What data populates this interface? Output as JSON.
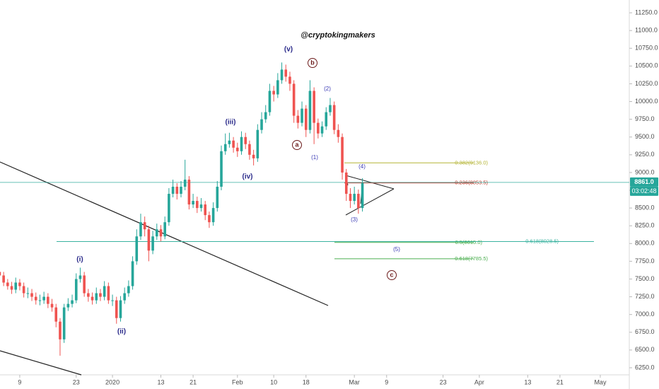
{
  "chart_data": {
    "type": "candlestick",
    "watermark": "@cryptokingmakers",
    "x": [
      3,
      4,
      5,
      6,
      7,
      8,
      9,
      10,
      11,
      12,
      13,
      14,
      15,
      16,
      17,
      18,
      19,
      20,
      21,
      22,
      23,
      24,
      25,
      26,
      27,
      28,
      29,
      30,
      31,
      32,
      33,
      34,
      35,
      36,
      37,
      38,
      39,
      40,
      41,
      42,
      43,
      44,
      45,
      46,
      47,
      48,
      49,
      50,
      51,
      52,
      53,
      54,
      55,
      56,
      57,
      58,
      59,
      60,
      61,
      62,
      63,
      64,
      65,
      66,
      67,
      68,
      69,
      70,
      71,
      72,
      73,
      74,
      75,
      76,
      77,
      78,
      79,
      80,
      81,
      82,
      83,
      84,
      85,
      86,
      87,
      88,
      89,
      90,
      91,
      92,
      93
    ],
    "open": [
      7600,
      7550,
      7450,
      7400,
      7350,
      7450,
      7400,
      7300,
      7300,
      7250,
      7200,
      7200,
      7250,
      7150,
      7100,
      6900,
      6650,
      7100,
      7150,
      7200,
      7500,
      7550,
      7300,
      7250,
      7200,
      7300,
      7250,
      7400,
      7200,
      7200,
      6950,
      7200,
      7300,
      7400,
      7750,
      8100,
      8300,
      8200,
      7900,
      8100,
      8200,
      8100,
      8300,
      8700,
      8800,
      8700,
      8800,
      8900,
      8550,
      8600,
      8500,
      8550,
      8400,
      8300,
      8500,
      8800,
      9300,
      9400,
      9450,
      9350,
      9300,
      9500,
      9400,
      9250,
      9200,
      9600,
      9750,
      9850,
      10150,
      10100,
      10300,
      10450,
      10350,
      10250,
      9800,
      9700,
      9900,
      9600,
      10150,
      9700,
      9550,
      9650,
      9850,
      9950,
      9600,
      9500,
      9000,
      8700,
      8600,
      8700,
      8500
    ],
    "high": [
      7680,
      7600,
      7500,
      7460,
      7520,
      7500,
      7450,
      7380,
      7360,
      7310,
      7280,
      7320,
      7300,
      7220,
      7150,
      6950,
      7150,
      7230,
      7280,
      7580,
      7660,
      7600,
      7360,
      7310,
      7380,
      7360,
      7470,
      7450,
      7280,
      7250,
      7260,
      7380,
      7480,
      7820,
      8200,
      8420,
      8380,
      8250,
      8180,
      8280,
      8260,
      8380,
      8780,
      8900,
      8850,
      8880,
      9180,
      8950,
      8700,
      8660,
      8640,
      8600,
      8450,
      8580,
      8880,
      9380,
      9550,
      9560,
      9500,
      9420,
      9580,
      9560,
      9450,
      9320,
      9680,
      9850,
      9950,
      10250,
      10220,
      10400,
      10550,
      10520,
      10420,
      10300,
      9880,
      10000,
      9950,
      10300,
      10200,
      9760,
      9720,
      9920,
      10050,
      10000,
      9680,
      9550,
      9050,
      8780,
      8800,
      8760,
      8920
    ],
    "low": [
      7500,
      7400,
      7350,
      7290,
      7300,
      7340,
      7240,
      7230,
      7190,
      7140,
      7130,
      7150,
      7090,
      7040,
      6820,
      6420,
      6600,
      7050,
      7100,
      7160,
      7450,
      7250,
      7180,
      7140,
      7150,
      7190,
      7200,
      7150,
      7120,
      6870,
      6900,
      7150,
      7250,
      7350,
      7700,
      8050,
      8100,
      7750,
      7850,
      8050,
      8030,
      8060,
      8250,
      8650,
      8620,
      8650,
      8750,
      8480,
      8500,
      8430,
      8450,
      8330,
      8220,
      8250,
      8450,
      8750,
      9250,
      9350,
      9280,
      9220,
      9250,
      9330,
      9180,
      9100,
      9150,
      9550,
      9700,
      9800,
      10000,
      10050,
      10250,
      10280,
      10150,
      9700,
      9620,
      9650,
      9500,
      9550,
      9400,
      9480,
      9500,
      9600,
      9800,
      9540,
      9420,
      8900,
      8600,
      8500,
      8550,
      8420,
      8450
    ],
    "close": [
      7550,
      7450,
      7400,
      7350,
      7450,
      7400,
      7300,
      7300,
      7250,
      7200,
      7200,
      7250,
      7150,
      7100,
      6900,
      6650,
      7100,
      7150,
      7200,
      7500,
      7550,
      7300,
      7250,
      7200,
      7300,
      7250,
      7400,
      7200,
      7200,
      6950,
      7200,
      7300,
      7400,
      7750,
      8100,
      8300,
      8200,
      7900,
      8100,
      8200,
      8100,
      8300,
      8700,
      8800,
      8700,
      8800,
      8900,
      8550,
      8600,
      8500,
      8550,
      8400,
      8300,
      8500,
      8800,
      9300,
      9400,
      9450,
      9350,
      9300,
      9500,
      9400,
      9250,
      9200,
      9600,
      9750,
      9850,
      10150,
      10100,
      10300,
      10450,
      10350,
      10250,
      9800,
      9700,
      9900,
      9600,
      10150,
      9700,
      9550,
      9650,
      9850,
      9950,
      9600,
      9500,
      9000,
      8700,
      8600,
      8700,
      8500,
      8850
    ],
    "up_color": "#26a69a",
    "down_color": "#ef5350",
    "xlim": [
      3.1,
      159.2
    ],
    "ylim": [
      6150,
      11430
    ],
    "xticks": [
      {
        "value": 8,
        "label": "9"
      },
      {
        "value": 22,
        "label": "23"
      },
      {
        "value": 31,
        "label": "2020"
      },
      {
        "value": 43,
        "label": "13"
      },
      {
        "value": 51,
        "label": "21"
      },
      {
        "value": 62,
        "label": "Feb"
      },
      {
        "value": 71,
        "label": "10"
      },
      {
        "value": 79,
        "label": "18"
      },
      {
        "value": 91,
        "label": "Mar"
      },
      {
        "value": 99,
        "label": "9"
      },
      {
        "value": 113,
        "label": "23"
      },
      {
        "value": 122,
        "label": "Apr"
      },
      {
        "value": 134,
        "label": "13"
      },
      {
        "value": 142,
        "label": "21"
      },
      {
        "value": 152,
        "label": "May"
      }
    ],
    "yticks": [
      {
        "value": 6250,
        "label": "6250.0"
      },
      {
        "value": 6500,
        "label": "6500.0"
      },
      {
        "value": 6750,
        "label": "6750.0"
      },
      {
        "value": 7000,
        "label": "7000.0"
      },
      {
        "value": 7250,
        "label": "7250.0"
      },
      {
        "value": 7500,
        "label": "7500.0"
      },
      {
        "value": 7750,
        "label": "7750.0"
      },
      {
        "value": 8000,
        "label": "8000.0"
      },
      {
        "value": 8250,
        "label": "8250.0"
      },
      {
        "value": 8500,
        "label": "8500.0"
      },
      {
        "value": 8750,
        "label": "8750.0"
      },
      {
        "value": 9000,
        "label": "9000.0"
      },
      {
        "value": 9250,
        "label": "9250.0"
      },
      {
        "value": 9500,
        "label": "9500.0"
      },
      {
        "value": 9750,
        "label": "9750.0"
      },
      {
        "value": 10000,
        "label": "10000.0"
      },
      {
        "value": 10250,
        "label": "10250.0"
      },
      {
        "value": 10500,
        "label": "10500.0"
      },
      {
        "value": 10750,
        "label": "10750.0"
      },
      {
        "value": 11000,
        "label": "11000.0"
      },
      {
        "value": 11250,
        "label": "11250.0"
      }
    ],
    "last_price": {
      "value": 8861.0,
      "label": "8861.0",
      "color": "#26a69a"
    },
    "countdown": "03:02:48",
    "fib_levels": [
      {
        "value": 9136.0,
        "label": "0.382(9136.0)",
        "color": "#b5b536"
      },
      {
        "value": 8853.5,
        "label": "0.236(8853.5)",
        "color": "#c0392b"
      },
      {
        "value": 8015.0,
        "label": "0.5(8015.0)",
        "color": "#4caf50"
      },
      {
        "value": 8028.5,
        "label": "0.618(8028.5)",
        "color": "#3bb3a0"
      },
      {
        "value": 7785.5,
        "label": "0.618(7785.5)",
        "color": "#4caf50"
      }
    ],
    "wave_labels": [
      "(i)",
      "(ii)",
      "(iii)",
      "(iv)",
      "(v)",
      "a",
      "b",
      "c",
      "(1)",
      "(2)",
      "(3)",
      "(4)",
      "(5)"
    ]
  }
}
